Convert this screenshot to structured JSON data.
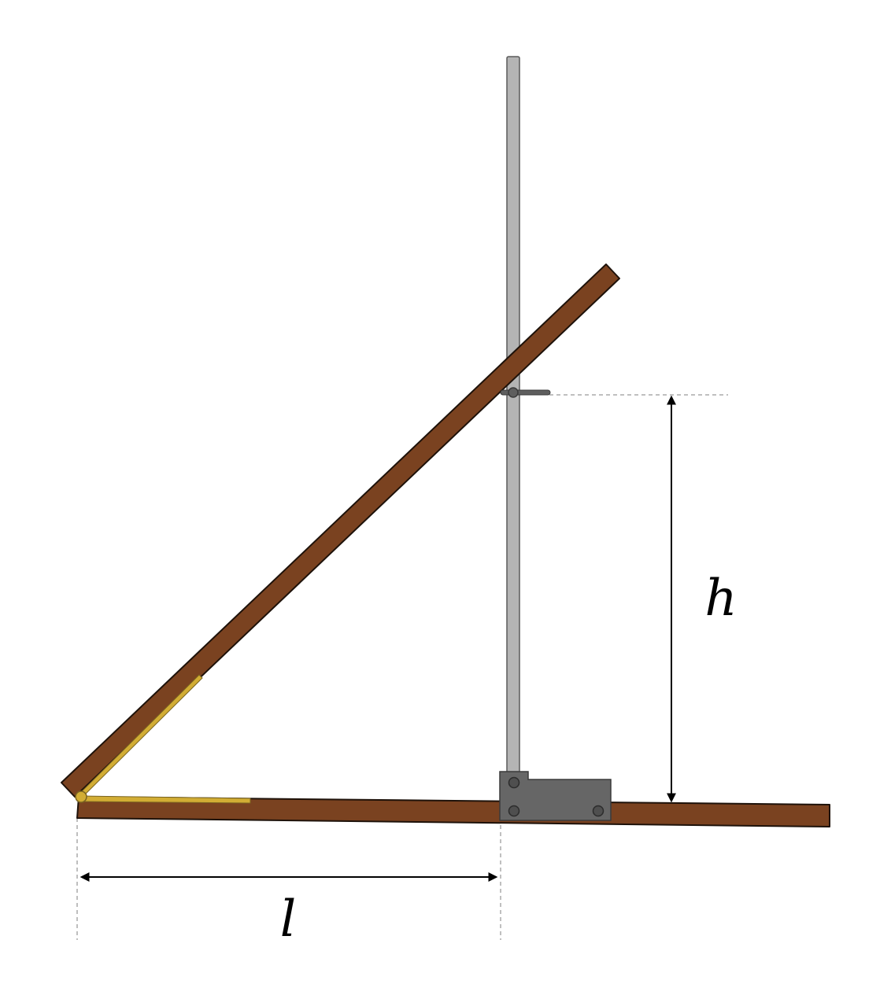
{
  "labels": {
    "height": "h",
    "length": "l"
  },
  "colors": {
    "wood": "#7a4220",
    "wood_outline": "#1e120a",
    "hinge": "#d2ad34",
    "hinge_outline": "#7a6420",
    "rod": "#b4b4b4",
    "rod_outline": "#5a5a5a",
    "clamp": "#666666",
    "clamp_outline": "#3a3a3a",
    "dimension": "#000000",
    "guide": "#aaaaaa"
  }
}
